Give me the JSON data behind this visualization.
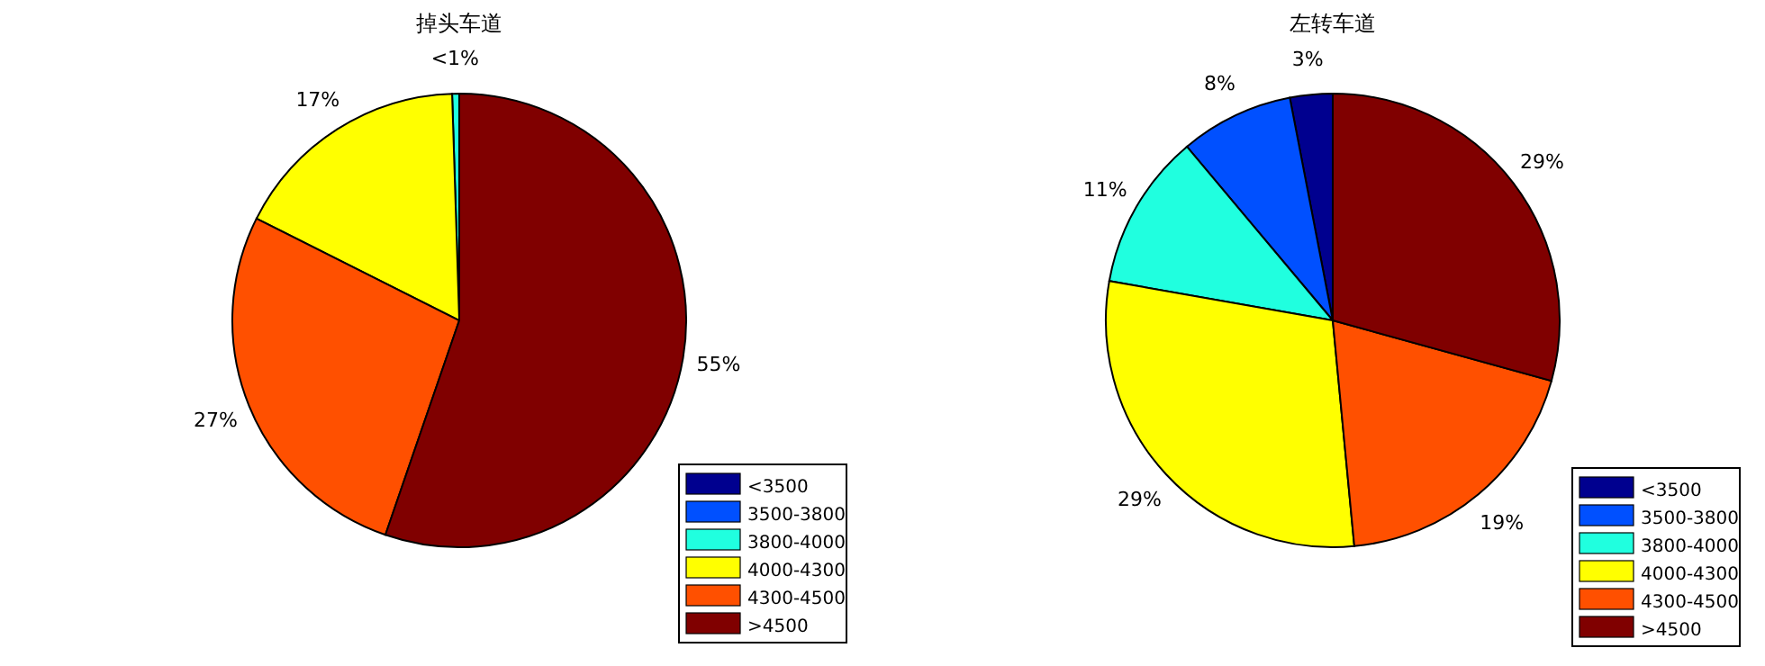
{
  "chart_data": [
    {
      "type": "pie",
      "title": "掉头车道",
      "categories": [
        "<3500",
        "3500-3800",
        "3800-4000",
        "4000-4300",
        "4300-4500",
        ">4500"
      ],
      "values": [
        0,
        0,
        0.5,
        17,
        27,
        55
      ],
      "value_labels": [
        null,
        null,
        "<1%",
        "17%",
        "27%",
        "55%"
      ],
      "colors": [
        "#00008f",
        "#0050ff",
        "#20ffdf",
        "#ffff00",
        "#ff5000",
        "#800000"
      ],
      "legend": "bottom right"
    },
    {
      "type": "pie",
      "title": "左转车道",
      "categories": [
        "<3500",
        "3500-3800",
        "3800-4000",
        "4000-4300",
        "4300-4500",
        ">4500"
      ],
      "values": [
        3,
        8,
        11,
        29,
        19,
        29
      ],
      "value_labels": [
        "3%",
        "8%",
        "11%",
        "29%",
        "19%",
        "29%"
      ],
      "colors": [
        "#00008f",
        "#0050ff",
        "#20ffdf",
        "#ffff00",
        "#ff5000",
        "#800000"
      ],
      "legend": "bottom right"
    }
  ]
}
